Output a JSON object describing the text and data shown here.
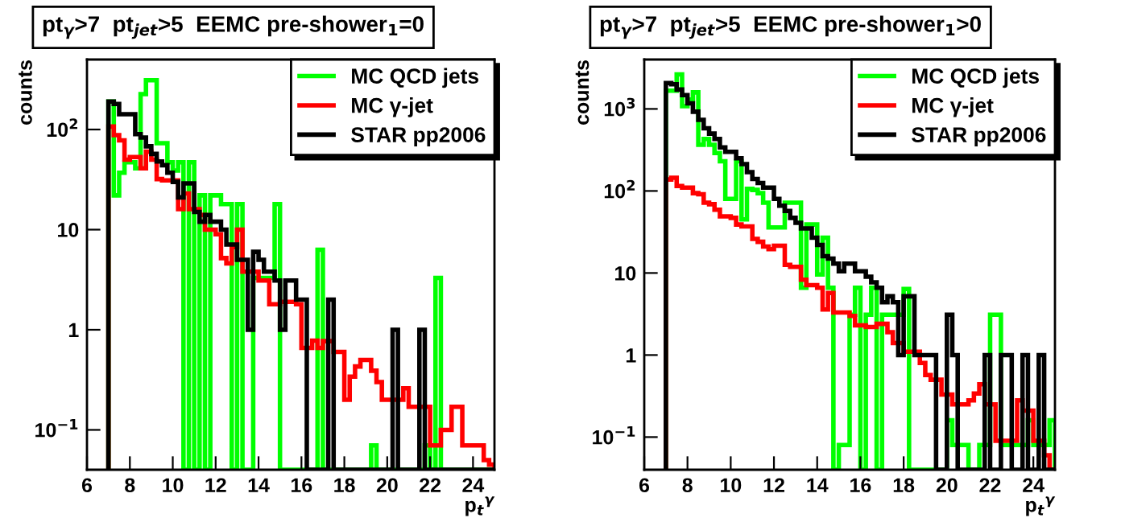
{
  "chart_data": [
    {
      "type": "histogram",
      "title": "pt$_{γ}$>7  pt$_{jet}$>5  EEMC pre-shower$_{1}$=0",
      "xlabel": "p$_{t}$$^{γ}$",
      "ylabel": "counts",
      "log": "y",
      "legend": "top right",
      "bins": [
        7,
        7.25,
        7.5,
        7.75,
        8,
        8.25,
        8.5,
        8.75,
        9,
        9.25,
        9.5,
        9.75,
        10,
        10.25,
        10.5,
        10.75,
        11,
        11.25,
        11.5,
        11.75,
        12,
        12.25,
        12.5,
        12.75,
        13,
        13.25,
        13.5,
        13.75,
        14,
        14.25,
        14.5,
        14.75,
        15,
        15.25,
        15.5,
        15.75,
        16,
        16.25,
        16.5,
        16.75,
        17,
        17.25,
        17.5,
        17.75,
        18,
        18.25,
        18.5,
        18.75,
        19,
        19.25,
        19.5,
        19.75,
        20,
        20.25,
        20.5,
        20.75,
        21,
        21.25,
        21.5,
        21.75,
        22,
        22.25,
        22.5,
        22.75,
        23,
        23.25,
        23.5,
        23.75,
        24,
        24.25,
        24.5,
        24.75,
        25
      ],
      "xlim": [
        6,
        25
      ],
      "xticks": [
        6,
        8,
        10,
        12,
        14,
        16,
        18,
        20,
        22,
        24
      ],
      "ylim": [
        0.04,
        500
      ],
      "yticks": [
        {
          "value": 0.1,
          "label": "10$^{−1}$"
        },
        1,
        10,
        {
          "value": 100,
          "label": "10$^{2}$"
        }
      ],
      "series": [
        {
          "name": "MC QCD jets",
          "color": "#00ff00",
          "values": [
            190,
            22,
            37,
            47,
            47,
            41,
            226,
            310,
            310,
            73,
            73,
            47,
            39,
            47,
            null,
            47,
            null,
            22,
            null,
            22,
            22,
            18,
            18,
            null,
            18,
            null,
            null,
            3.3,
            3.3,
            3.3,
            3.3,
            18,
            null,
            null,
            null,
            null,
            null,
            null,
            null,
            6.3,
            null,
            null,
            null,
            null,
            null,
            null,
            null,
            null,
            null,
            0.07,
            null,
            null,
            null,
            null,
            null,
            null,
            null,
            null,
            null,
            0.07,
            null,
            3.3,
            null,
            null,
            null,
            null,
            null,
            null,
            null,
            null,
            null,
            null
          ]
        },
        {
          "name": "MC γ-jet",
          "color": "#ff0000",
          "values": [
            107,
            88,
            78,
            50,
            53,
            53,
            41,
            60,
            50,
            32,
            31,
            31,
            31,
            16,
            23,
            16,
            16,
            14,
            10,
            10,
            9,
            5.2,
            4.6,
            6.7,
            10,
            3.8,
            3.8,
            3.8,
            3.1,
            3.1,
            1.8,
            1.8,
            1.9,
            1.9,
            1.9,
            1.8,
            0.66,
            0.66,
            0.78,
            0.66,
            0.77,
            0.77,
            0.6,
            0.6,
            0.2,
            0.34,
            0.43,
            0.5,
            0.5,
            0.39,
            0.3,
            0.2,
            0.2,
            0.2,
            0.2,
            0.26,
            0.17,
            0.17,
            0.17,
            0.17,
            0.07,
            0.07,
            0.1,
            0.1,
            0.17,
            0.17,
            0.07,
            0.07,
            0.07,
            0.07,
            0.05,
            0.045
          ]
        },
        {
          "name": "STAR pp2006",
          "color": "#000000",
          "values": [
            190,
            180,
            142,
            142,
            142,
            90,
            83,
            68,
            57,
            48,
            44,
            37,
            30,
            21,
            29,
            29,
            15,
            12,
            14,
            12,
            12,
            10,
            7.1,
            7.1,
            5,
            5,
            1,
            6,
            5,
            3.8,
            3.8,
            3.1,
            1,
            3.1,
            3.1,
            2,
            2,
            null,
            null,
            null,
            null,
            2,
            null,
            null,
            null,
            null,
            null,
            null,
            null,
            null,
            null,
            null,
            null,
            1,
            null,
            null,
            null,
            null,
            1,
            null,
            null,
            null,
            null,
            null,
            null,
            null,
            null,
            null,
            null,
            null,
            null,
            null
          ]
        }
      ]
    },
    {
      "type": "histogram",
      "title": "pt$_{γ}$>7  pt$_{jet}$>5  EEMC pre-shower$_{1}$>0",
      "xlabel": "p$_{t}$$^{γ}$",
      "ylabel": "counts",
      "log": "y",
      "legend": "top right",
      "bins": [
        7,
        7.25,
        7.5,
        7.75,
        8,
        8.25,
        8.5,
        8.75,
        9,
        9.25,
        9.5,
        9.75,
        10,
        10.25,
        10.5,
        10.75,
        11,
        11.25,
        11.5,
        11.75,
        12,
        12.25,
        12.5,
        12.75,
        13,
        13.25,
        13.5,
        13.75,
        14,
        14.25,
        14.5,
        14.75,
        15,
        15.25,
        15.5,
        15.75,
        16,
        16.25,
        16.5,
        16.75,
        17,
        17.25,
        17.5,
        17.75,
        18,
        18.25,
        18.5,
        18.75,
        19,
        19.25,
        19.5,
        19.75,
        20,
        20.25,
        20.5,
        20.75,
        21,
        21.25,
        21.5,
        21.75,
        22,
        22.25,
        22.5,
        22.75,
        23,
        23.25,
        23.5,
        23.75,
        24,
        24.25,
        24.5,
        24.75,
        25
      ],
      "xlim": [
        6,
        25
      ],
      "xticks": [
        6,
        8,
        10,
        12,
        14,
        16,
        18,
        20,
        22,
        24
      ],
      "ylim": [
        0.04,
        4000
      ],
      "yticks": [
        {
          "value": 0.1,
          "label": "10$^{−1}$"
        },
        1,
        10,
        {
          "value": 100,
          "label": "10$^{2}$"
        },
        {
          "value": 1000,
          "label": "10$^{3}$"
        }
      ],
      "series": [
        {
          "name": "MC QCD jets",
          "color": "#00ff00",
          "values": [
            1670,
            1670,
            2640,
            1080,
            1300,
            1590,
            366,
            430,
            366,
            290,
            230,
            80,
            80,
            230,
            45,
            106,
            103,
            94,
            72,
            36,
            36,
            36,
            72,
            72,
            72,
            6.6,
            39,
            39,
            9.6,
            27,
            6.6,
            null,
            0.08,
            0.08,
            3.1,
            6.6,
            null,
            3.1,
            6.6,
            null,
            3.1,
            3.1,
            3.1,
            3.1,
            6.4,
            null,
            null,
            null,
            null,
            null,
            null,
            null,
            0.16,
            0.08,
            0.08,
            0.08,
            null,
            null,
            0.08,
            0.08,
            3.1,
            3.1,
            0.08,
            0.08,
            0.08,
            0.08,
            0.08,
            0.16,
            0.08,
            0.08,
            0.08,
            0.16
          ]
        },
        {
          "name": "MC γ-jet",
          "color": "#ff0000",
          "values": [
            138,
            145,
            115,
            110,
            110,
            94,
            91,
            72,
            69,
            59,
            49,
            49,
            47,
            39,
            37,
            37,
            26,
            24,
            21,
            19.5,
            21.5,
            21.5,
            12.6,
            11.9,
            11.9,
            8.3,
            7.1,
            7.1,
            6.6,
            3.6,
            5.7,
            3.3,
            3.3,
            3.3,
            3.0,
            2.3,
            2.3,
            2.2,
            2.2,
            2.4,
            2.4,
            1.9,
            1.4,
            1.4,
            1.1,
            1.1,
            1.1,
            0.8,
            0.57,
            0.5,
            0.5,
            0.33,
            0.33,
            0.25,
            0.25,
            0.25,
            0.28,
            0.34,
            0.44,
            0.25,
            0.25,
            0.09,
            0.09,
            0.09,
            0.09,
            0.28,
            0.21,
            0.21,
            0.09,
            0.09,
            0.06,
            null
          ]
        },
        {
          "name": "STAR pp2006",
          "color": "#000000",
          "values": [
            2066,
            2000,
            1720,
            1470,
            1170,
            925,
            735,
            580,
            500,
            430,
            340,
            300,
            300,
            250,
            213,
            170,
            140,
            125,
            110,
            110,
            80,
            66,
            57,
            47,
            41,
            35,
            35,
            27,
            22,
            16,
            15,
            13,
            10.5,
            13,
            13,
            10.5,
            10.5,
            9,
            7.7,
            6.6,
            4.4,
            5.2,
            4.4,
            1,
            5.2,
            5.2,
            1,
            1,
            1,
            1,
            null,
            null,
            3.1,
            1,
            null,
            null,
            null,
            null,
            null,
            1,
            null,
            null,
            1,
            1,
            null,
            null,
            1,
            null,
            null,
            1,
            null,
            null
          ]
        }
      ]
    }
  ]
}
